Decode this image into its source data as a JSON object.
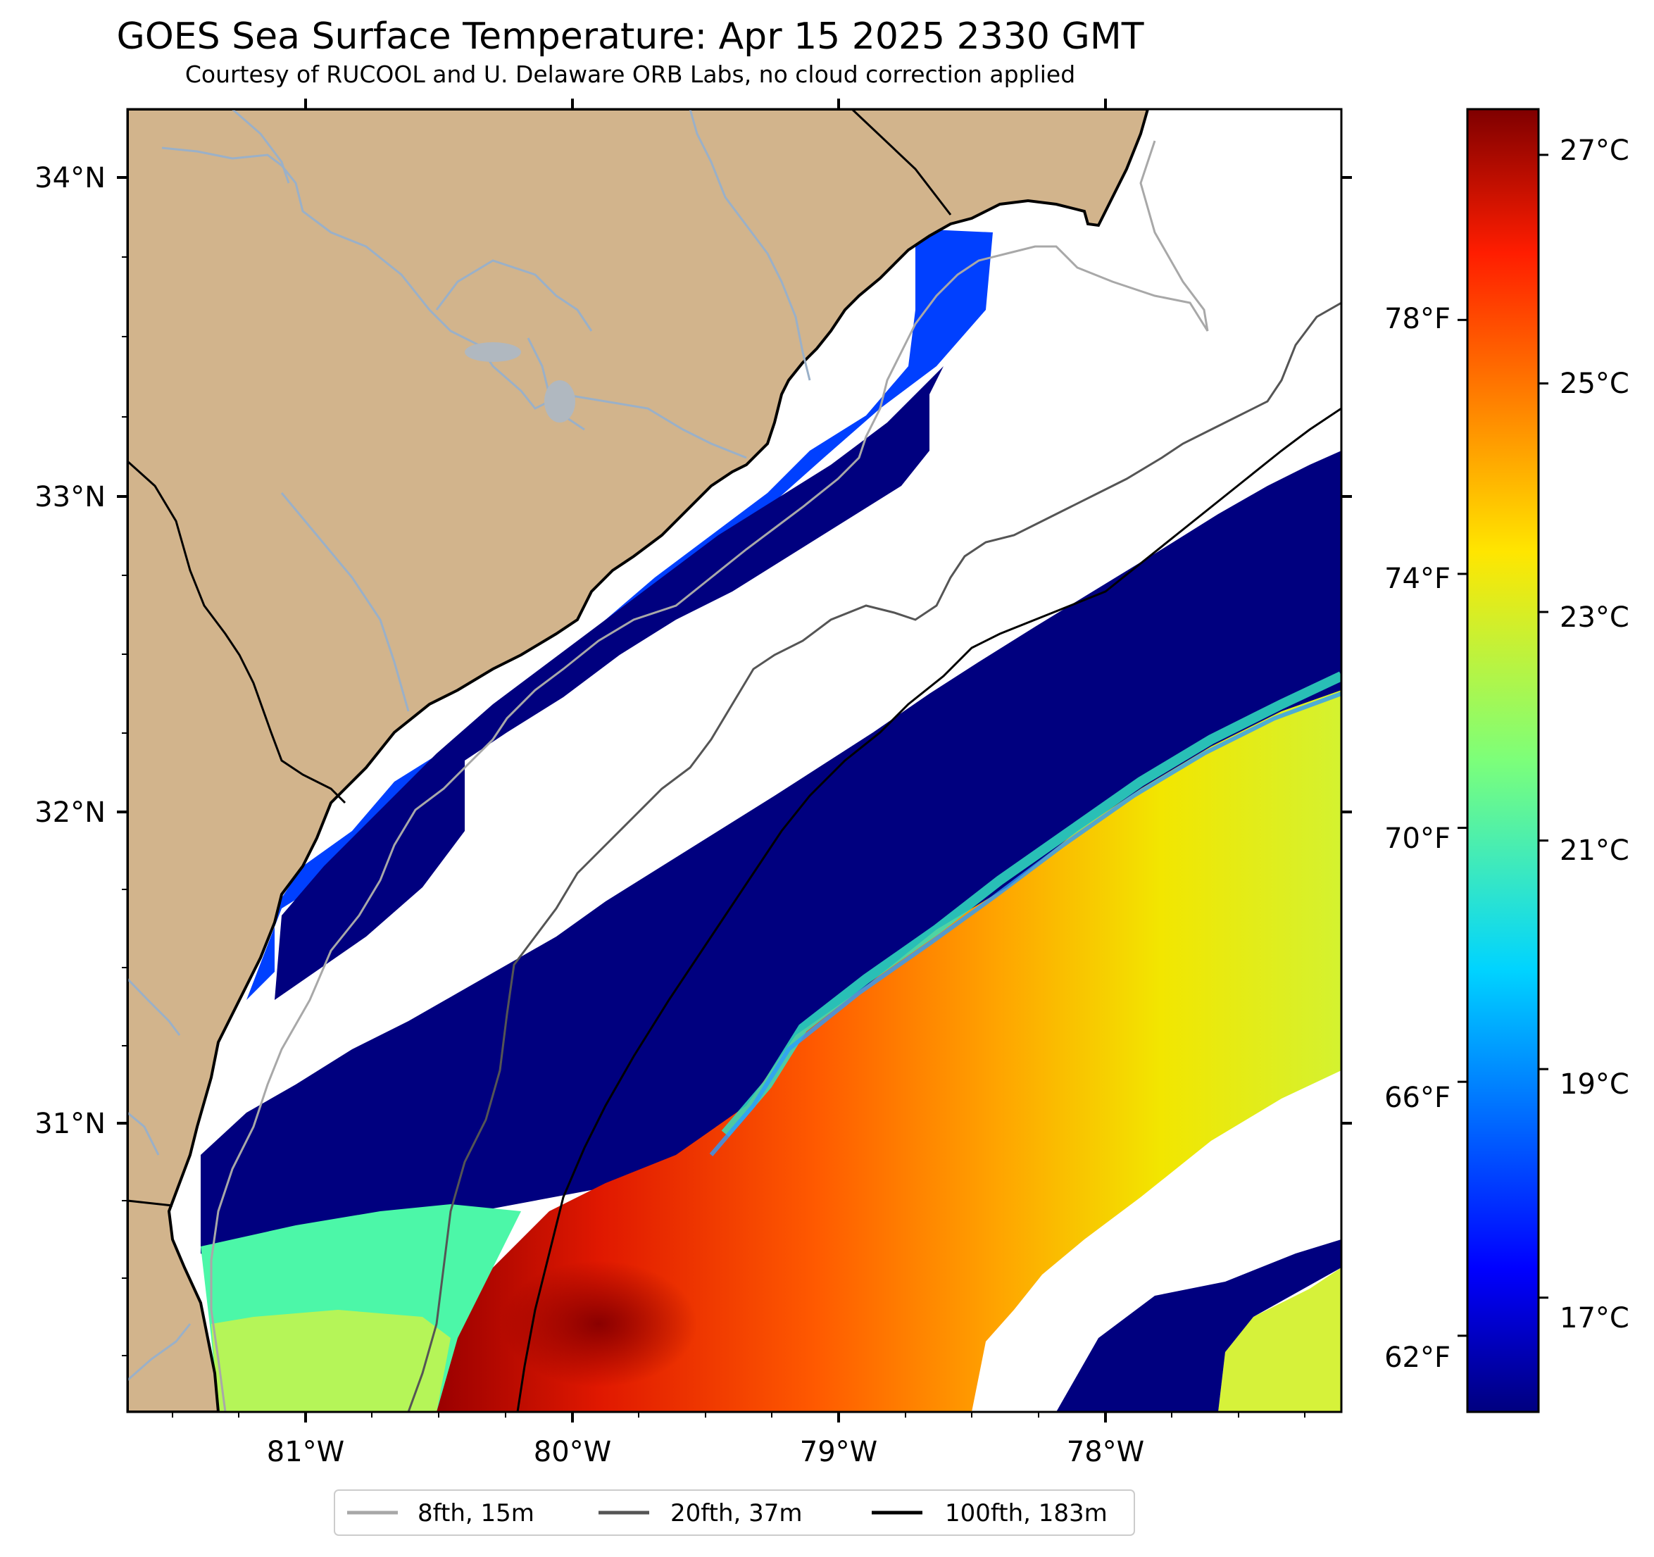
{
  "title": "GOES Sea Surface Temperature: Apr 15 2025 2330 GMT",
  "subtitle": "Courtesy of RUCOOL and U. Delaware ORB Labs, no cloud correction applied",
  "map": {
    "lon_range": [
      -81.67,
      -77.12
    ],
    "lat_range": [
      30.08,
      34.22
    ],
    "lon_ticks": [
      {
        "value": -81,
        "label": "81°W"
      },
      {
        "value": -80,
        "label": "80°W"
      },
      {
        "value": -79,
        "label": "79°W"
      },
      {
        "value": -78,
        "label": "78°W"
      }
    ],
    "lat_ticks": [
      {
        "value": 34,
        "label": "34°N"
      },
      {
        "value": 33,
        "label": "33°N"
      },
      {
        "value": 32,
        "label": "32°N"
      },
      {
        "value": 31,
        "label": "31°N"
      }
    ]
  },
  "colorbar": {
    "colormap": "jet",
    "range_c": [
      16.0,
      27.4
    ],
    "celsius_ticks": [
      {
        "value": 27,
        "label": "27°C"
      },
      {
        "value": 25,
        "label": "25°C"
      },
      {
        "value": 23,
        "label": "23°C"
      },
      {
        "value": 21,
        "label": "21°C"
      },
      {
        "value": 19,
        "label": "19°C"
      },
      {
        "value": 17,
        "label": "17°C"
      }
    ],
    "fahrenheit_ticks": [
      {
        "value": 78,
        "label": "78°F"
      },
      {
        "value": 74,
        "label": "74°F"
      },
      {
        "value": 70,
        "label": "70°F"
      },
      {
        "value": 66,
        "label": "66°F"
      },
      {
        "value": 62,
        "label": "62°F"
      }
    ]
  },
  "legend": [
    {
      "label": "8fth, 15m",
      "color": "#a8a8a8"
    },
    {
      "label": "20fth, 37m",
      "color": "#555555"
    },
    {
      "label": "100fth, 183m",
      "color": "#000000"
    }
  ],
  "colors": {
    "land": "#d2b48c",
    "no_data": "#ffffff",
    "river": "#9ab0c8",
    "coast": "#000000"
  }
}
